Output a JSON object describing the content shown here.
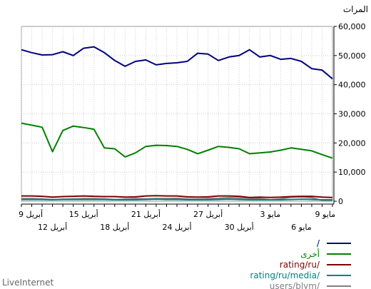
{
  "header": {
    "unit_label": "المرات"
  },
  "footer": {
    "brand": "LiveInternet"
  },
  "chart_data": {
    "type": "line",
    "ylim": [
      0,
      60000
    ],
    "y_ticks": [
      {
        "value": 0,
        "label": "0"
      },
      {
        "value": 10000,
        "label": "10,000"
      },
      {
        "value": 20000,
        "label": "20,000"
      },
      {
        "value": 30000,
        "label": "30,000"
      },
      {
        "value": 40000,
        "label": "40,000"
      },
      {
        "value": 50000,
        "label": "50,000"
      },
      {
        "value": 60000,
        "label": "60,000"
      }
    ],
    "x_count": 31,
    "x_labels_top": [
      {
        "index": 0,
        "label": "9 مايو"
      },
      {
        "index": 6,
        "label": "3 مايو"
      },
      {
        "index": 12,
        "label": "27 أبريل"
      },
      {
        "index": 18,
        "label": "21 أبريل"
      },
      {
        "index": 24,
        "label": "15 أبريل"
      },
      {
        "index": 30,
        "label": "9 أبريل"
      }
    ],
    "x_labels_bottom": [
      {
        "index": 3,
        "label": "6 مايو"
      },
      {
        "index": 9,
        "label": "30 أبريل"
      },
      {
        "index": 15,
        "label": "24 أبريل"
      },
      {
        "index": 21,
        "label": "18 أبريل"
      },
      {
        "index": 27,
        "label": "12 أبريل"
      }
    ],
    "series": [
      {
        "name": "/",
        "color": "#000080",
        "values": [
          42000,
          45000,
          45500,
          48000,
          49000,
          48700,
          50000,
          49500,
          52000,
          50000,
          49500,
          48300,
          50500,
          50800,
          48000,
          47500,
          47300,
          46800,
          48500,
          48000,
          46300,
          48300,
          51000,
          53000,
          52500,
          50000,
          51300,
          50300,
          50200,
          51000,
          52000
        ]
      },
      {
        "name": "أخرى",
        "color": "#008000",
        "values": [
          14800,
          16000,
          17300,
          17800,
          18300,
          17500,
          16900,
          16600,
          16300,
          18000,
          18500,
          18800,
          17500,
          16300,
          17800,
          18800,
          19100,
          19200,
          18800,
          16600,
          15200,
          18000,
          18300,
          24700,
          25300,
          25800,
          24300,
          17000,
          25400,
          26100,
          26800
        ]
      },
      {
        "name": "rating/ru/",
        "color": "#800000",
        "values": [
          1300,
          1400,
          1700,
          1700,
          1600,
          1400,
          1300,
          1400,
          1300,
          1700,
          1800,
          1800,
          1500,
          1400,
          1500,
          1800,
          1800,
          1900,
          1800,
          1500,
          1400,
          1600,
          1600,
          1700,
          1800,
          1700,
          1600,
          1400,
          1700,
          1800,
          1800
        ]
      },
      {
        "name": "rating/ru/media/",
        "color": "#008080",
        "values": [
          500,
          500,
          600,
          700,
          600,
          500,
          500,
          500,
          500,
          600,
          700,
          600,
          500,
          500,
          500,
          600,
          600,
          700,
          600,
          500,
          500,
          500,
          600,
          600,
          600,
          600,
          600,
          500,
          600,
          600,
          600
        ]
      },
      {
        "name": "users/blym/",
        "color": "#808080",
        "values": [
          300,
          300,
          1200,
          1500,
          1400,
          800,
          500,
          900,
          1000,
          1100,
          1200,
          1000,
          900,
          700,
          800,
          1000,
          900,
          900,
          800,
          900,
          700,
          600,
          800,
          900,
          900,
          800,
          700,
          600,
          800,
          900,
          900
        ]
      }
    ]
  }
}
